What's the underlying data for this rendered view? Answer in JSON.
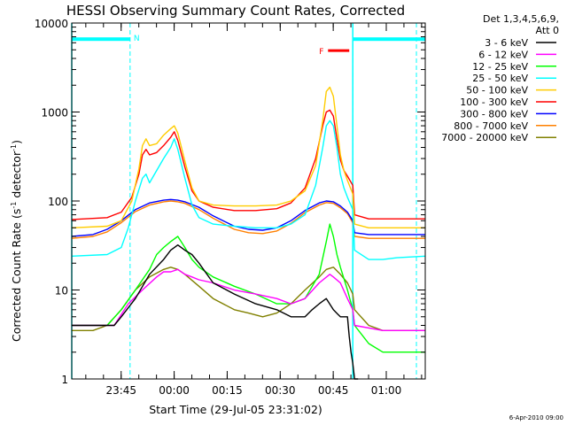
{
  "chart_data": {
    "type": "line",
    "title": "HESSI Observing Summary Count Rates, Corrected",
    "xlabel": "Start Time (29-Jul-05 23:31:02)",
    "ylabel_prefix": "Corrected Count Rate (s",
    "ylabel_sup1": "-1",
    "ylabel_mid": " detector",
    "ylabel_sup2": "-1",
    "ylabel_suffix": ")",
    "footer": "6-Apr-2010 09:00",
    "legend_header": [
      "Det 1,3,4,5,6,9,",
      "Att 0"
    ],
    "x_unit": "minutes since 23:31:02",
    "xlim": [
      0,
      100
    ],
    "ylim": [
      1,
      10000
    ],
    "yscale": "log",
    "x_ticks": [
      {
        "value": 13.97,
        "label": "23:45"
      },
      {
        "value": 28.97,
        "label": "00:00"
      },
      {
        "value": 43.97,
        "label": "00:15"
      },
      {
        "value": 58.97,
        "label": "00:30"
      },
      {
        "value": 73.97,
        "label": "00:45"
      },
      {
        "value": 88.97,
        "label": "01:00"
      }
    ],
    "y_ticks": [
      {
        "value": 1,
        "label": "1"
      },
      {
        "value": 10,
        "label": "10"
      },
      {
        "value": 100,
        "label": "100"
      },
      {
        "value": 1000,
        "label": "1000"
      },
      {
        "value": 10000,
        "label": "10000"
      }
    ],
    "markers": {
      "night_flag_label": "N",
      "night_intervals": [
        [
          0,
          16.5
        ],
        [
          79.5,
          100
        ]
      ],
      "flare_flag_label": "F",
      "flare_interval": [
        72.5,
        78.5
      ],
      "dashed_lines": [
        16.5,
        79.5,
        97.5
      ],
      "solid_lines": [
        0,
        79.5
      ]
    },
    "series": [
      {
        "name": "3 - 6 keV",
        "color": "#000000",
        "x": [
          0,
          12,
          14,
          18,
          22,
          26,
          28,
          30,
          32,
          34,
          36,
          40,
          46,
          52,
          58,
          62,
          64,
          66,
          68,
          70,
          72,
          74,
          76,
          78,
          78.5,
          79,
          79.5,
          80,
          81
        ],
        "y": [
          4,
          4,
          5,
          8,
          15,
          22,
          28,
          32,
          28,
          25,
          20,
          12,
          9,
          7,
          6,
          5,
          5,
          5,
          6,
          7,
          8,
          6,
          5,
          5,
          3,
          2,
          1.5,
          1,
          1
        ]
      },
      {
        "name": "6 - 12 keV",
        "color": "#ff00ff",
        "x": [
          0,
          12,
          16,
          20,
          24,
          26,
          28,
          30,
          32,
          34,
          36,
          40,
          46,
          52,
          58,
          62,
          66,
          70,
          73,
          74,
          76,
          78,
          79.5,
          80,
          88,
          100
        ],
        "y": [
          4,
          4,
          7,
          10,
          14,
          16,
          16,
          17,
          15,
          14,
          13,
          12,
          10,
          9,
          8,
          7,
          8,
          12,
          15,
          14,
          12,
          8,
          6,
          4,
          3.5,
          3.5
        ]
      },
      {
        "name": "12 - 25 keV",
        "color": "#00ff00",
        "x": [
          0,
          10,
          14,
          18,
          22,
          24,
          26,
          28,
          30,
          32,
          34,
          36,
          40,
          46,
          52,
          58,
          62,
          66,
          70,
          72,
          73,
          74,
          75,
          76,
          78,
          79.5,
          80,
          84,
          88,
          92,
          100
        ],
        "y": [
          4,
          4,
          6,
          10,
          17,
          25,
          30,
          35,
          40,
          30,
          22,
          18,
          14,
          11,
          9,
          7,
          7,
          8,
          15,
          35,
          55,
          40,
          25,
          18,
          10,
          6,
          4,
          2.5,
          2,
          2,
          2
        ]
      },
      {
        "name": "25 - 50 keV",
        "color": "#00ffff",
        "x": [
          0,
          10,
          14,
          16,
          18,
          20,
          21,
          22,
          24,
          26,
          28,
          29,
          30,
          32,
          34,
          36,
          40,
          46,
          52,
          58,
          62,
          66,
          69,
          71,
          72,
          73,
          74,
          75,
          76,
          77,
          78,
          79.5,
          80,
          84,
          88,
          92,
          100
        ],
        "y": [
          24,
          25,
          30,
          50,
          100,
          180,
          200,
          160,
          220,
          300,
          400,
          500,
          380,
          180,
          90,
          65,
          55,
          52,
          50,
          50,
          55,
          70,
          150,
          400,
          700,
          800,
          700,
          400,
          200,
          140,
          110,
          80,
          28,
          22,
          22,
          23,
          24
        ]
      },
      {
        "name": "50 - 100 keV",
        "color": "#ffcc00",
        "x": [
          0,
          10,
          14,
          17,
          19,
          20,
          21,
          22,
          24,
          26,
          28,
          29,
          30,
          32,
          34,
          36,
          40,
          46,
          52,
          58,
          62,
          66,
          69,
          71,
          72,
          73,
          74,
          75,
          76,
          77,
          78,
          79.5,
          80,
          84,
          100
        ],
        "y": [
          50,
          52,
          60,
          100,
          230,
          420,
          500,
          420,
          440,
          550,
          650,
          700,
          580,
          280,
          140,
          100,
          90,
          88,
          88,
          90,
          100,
          130,
          250,
          800,
          1700,
          1900,
          1500,
          700,
          330,
          220,
          170,
          120,
          55,
          50,
          50
        ]
      },
      {
        "name": "100 - 300 keV",
        "color": "#ff0000",
        "x": [
          0,
          10,
          14,
          17,
          19,
          20,
          21,
          22,
          24,
          26,
          28,
          29,
          30,
          32,
          34,
          36,
          40,
          46,
          52,
          58,
          62,
          66,
          69,
          71,
          72,
          73,
          74,
          75,
          76,
          77,
          78,
          79.5,
          80,
          84,
          100
        ],
        "y": [
          62,
          65,
          75,
          110,
          200,
          330,
          380,
          330,
          350,
          420,
          520,
          600,
          480,
          240,
          130,
          100,
          85,
          78,
          78,
          82,
          95,
          140,
          300,
          700,
          1000,
          1050,
          900,
          500,
          290,
          220,
          190,
          150,
          70,
          63,
          63
        ]
      },
      {
        "name": "300 - 800 keV",
        "color": "#0000ff",
        "x": [
          0,
          6,
          10,
          14,
          18,
          22,
          26,
          28,
          30,
          32,
          36,
          40,
          46,
          50,
          54,
          58,
          62,
          66,
          70,
          72,
          74,
          76,
          78,
          79.5,
          80,
          84,
          100
        ],
        "y": [
          40,
          42,
          48,
          60,
          80,
          95,
          102,
          104,
          102,
          98,
          85,
          68,
          52,
          48,
          47,
          50,
          60,
          78,
          95,
          100,
          98,
          88,
          75,
          60,
          44,
          42,
          42
        ]
      },
      {
        "name": "800 - 7000 keV",
        "color": "#ff8000",
        "x": [
          0,
          6,
          10,
          14,
          18,
          22,
          26,
          28,
          30,
          32,
          36,
          40,
          46,
          50,
          54,
          58,
          62,
          66,
          70,
          72,
          74,
          76,
          78,
          79.5,
          80,
          84,
          100
        ],
        "y": [
          38,
          40,
          45,
          57,
          76,
          90,
          98,
          100,
          98,
          94,
          80,
          64,
          48,
          44,
          43,
          46,
          56,
          74,
          90,
          96,
          94,
          84,
          72,
          57,
          40,
          38,
          38
        ]
      },
      {
        "name": "7000 - 20000 keV",
        "color": "#808000",
        "x": [
          0,
          6,
          10,
          14,
          18,
          22,
          26,
          28,
          30,
          32,
          36,
          40,
          46,
          50,
          54,
          58,
          62,
          66,
          70,
          72,
          74,
          76,
          78,
          79.5,
          80,
          84,
          88,
          100
        ],
        "y": [
          3.5,
          3.5,
          4,
          6,
          10,
          14,
          17,
          18,
          17,
          15,
          11,
          8,
          6,
          5.5,
          5,
          5.5,
          7,
          10,
          14,
          17,
          18,
          15,
          12,
          9,
          6,
          4,
          3.5,
          3.5
        ]
      }
    ]
  }
}
